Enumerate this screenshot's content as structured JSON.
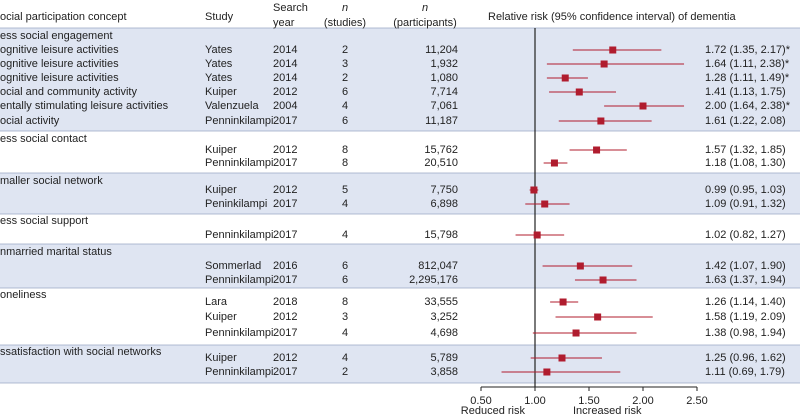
{
  "chart_data": {
    "type": "forest",
    "headers": {
      "concept": "ocial participation concept",
      "study": "Study",
      "year": [
        "Search",
        "year"
      ],
      "studies": [
        "n",
        "(studies)"
      ],
      "participants": [
        "n",
        "(participants)"
      ],
      "effect": "Relative risk (95% confidence interval) of dementia"
    },
    "xlim": [
      0.5,
      2.5
    ],
    "xticks": [
      {
        "value": 0.5,
        "label": "0.50"
      },
      {
        "value": 1,
        "label": "1.00"
      },
      {
        "value": 1.5,
        "label": "1.50"
      },
      {
        "value": 2,
        "label": "2.00"
      },
      {
        "value": 2.5,
        "label": "2.50"
      }
    ],
    "reference_line": 1,
    "x_annotations": [
      "Reduced risk",
      "Increased risk"
    ],
    "color": "#b01c2e",
    "groups": [
      {
        "name": "ess social engagement",
        "rows": [
          {
            "label": "ognitive leisure activities",
            "study": "Yates",
            "year": 2014,
            "n": 2,
            "participants": "11,204",
            "rr": 1.72,
            "lo": 1.35,
            "hi": 2.17,
            "value_label": "1.72 (1.35, 2.17)*"
          },
          {
            "label": "ognitive leisure activities",
            "study": "Yates",
            "year": 2014,
            "n": 3,
            "participants": "1,932",
            "rr": 1.64,
            "lo": 1.11,
            "hi": 2.38,
            "value_label": "1.64 (1.11, 2.38)*"
          },
          {
            "label": "ognitive leisure activities",
            "study": "Yates",
            "year": 2014,
            "n": 2,
            "participants": "1,080",
            "rr": 1.28,
            "lo": 1.11,
            "hi": 1.49,
            "value_label": "1.28 (1.11, 1.49)*"
          },
          {
            "label": "ocial and community activity",
            "study": "Kuiper",
            "year": 2012,
            "n": 6,
            "participants": "7,714",
            "rr": 1.41,
            "lo": 1.13,
            "hi": 1.75,
            "value_label": "1.41 (1.13, 1.75)"
          },
          {
            "label": "entally stimulating leisure activities",
            "study": "Valenzuela",
            "year": 2004,
            "n": 4,
            "participants": "7,061",
            "rr": 2.0,
            "lo": 1.64,
            "hi": 2.38,
            "value_label": "2.00 (1.64, 2.38)*"
          },
          {
            "label": "ocial activity",
            "study": "Penninkilampi",
            "year": 2017,
            "n": 6,
            "participants": "11,187",
            "rr": 1.61,
            "lo": 1.22,
            "hi": 2.08,
            "value_label": "1.61 (1.22, 2.08)"
          }
        ]
      },
      {
        "name": "ess social contact",
        "rows": [
          {
            "study": "Kuiper",
            "year": 2012,
            "n": 8,
            "participants": "15,762",
            "rr": 1.57,
            "lo": 1.32,
            "hi": 1.85,
            "value_label": "1.57 (1.32, 1.85)"
          },
          {
            "study": "Penninkilampi",
            "year": 2017,
            "n": 8,
            "participants": "20,510",
            "rr": 1.18,
            "lo": 1.08,
            "hi": 1.3,
            "value_label": "1.18 (1.08, 1.30)"
          }
        ]
      },
      {
        "name": "maller social network",
        "rows": [
          {
            "study": "Kuiper",
            "year": 2012,
            "n": 5,
            "participants": "7,750",
            "rr": 0.99,
            "lo": 0.95,
            "hi": 1.03,
            "value_label": "0.99 (0.95, 1.03)"
          },
          {
            "study": "Peninkilampi",
            "year": 2017,
            "n": 4,
            "participants": "6,898",
            "rr": 1.09,
            "lo": 0.91,
            "hi": 1.32,
            "value_label": "1.09 (0.91, 1.32)"
          }
        ]
      },
      {
        "name": "ess social support",
        "rows": [
          {
            "study": "Penninkilampi",
            "year": 2017,
            "n": 4,
            "participants": "15,798",
            "rr": 1.02,
            "lo": 0.82,
            "hi": 1.27,
            "value_label": "1.02 (0.82, 1.27)"
          }
        ]
      },
      {
        "name": "nmarried marital status",
        "rows": [
          {
            "study": "Sommerlad",
            "year": 2016,
            "n": 6,
            "participants": "812,047",
            "rr": 1.42,
            "lo": 1.07,
            "hi": 1.9,
            "value_label": "1.42 (1.07, 1.90)"
          },
          {
            "study": "Penninkilampi",
            "year": 2017,
            "n": 6,
            "participants": "2,295,176",
            "rr": 1.63,
            "lo": 1.37,
            "hi": 1.94,
            "value_label": "1.63 (1.37, 1.94)"
          }
        ]
      },
      {
        "name": "oneliness",
        "rows": [
          {
            "study": "Lara",
            "year": 2018,
            "n": 8,
            "participants": "33,555",
            "rr": 1.26,
            "lo": 1.14,
            "hi": 1.4,
            "value_label": "1.26 (1.14, 1.40)"
          },
          {
            "study": "Kuiper",
            "year": 2012,
            "n": 3,
            "participants": "3,252",
            "rr": 1.58,
            "lo": 1.19,
            "hi": 2.09,
            "value_label": "1.58 (1.19, 2.09)"
          },
          {
            "study": "Penninkilampi",
            "year": 2017,
            "n": 4,
            "participants": "4,698",
            "rr": 1.38,
            "lo": 0.98,
            "hi": 1.94,
            "value_label": "1.38 (0.98, 1.94)"
          }
        ]
      },
      {
        "name": "ssatisfaction with social networks",
        "rows": [
          {
            "study": "Kuiper",
            "year": 2012,
            "n": 4,
            "participants": "5,789",
            "rr": 1.25,
            "lo": 0.96,
            "hi": 1.62,
            "value_label": "1.25 (0.96, 1.62)"
          },
          {
            "study": "Penninkilampi",
            "year": 2017,
            "n": 2,
            "participants": "3,858",
            "rr": 1.11,
            "lo": 0.69,
            "hi": 1.79,
            "value_label": "1.11 (0.69, 1.79)"
          }
        ]
      }
    ]
  }
}
